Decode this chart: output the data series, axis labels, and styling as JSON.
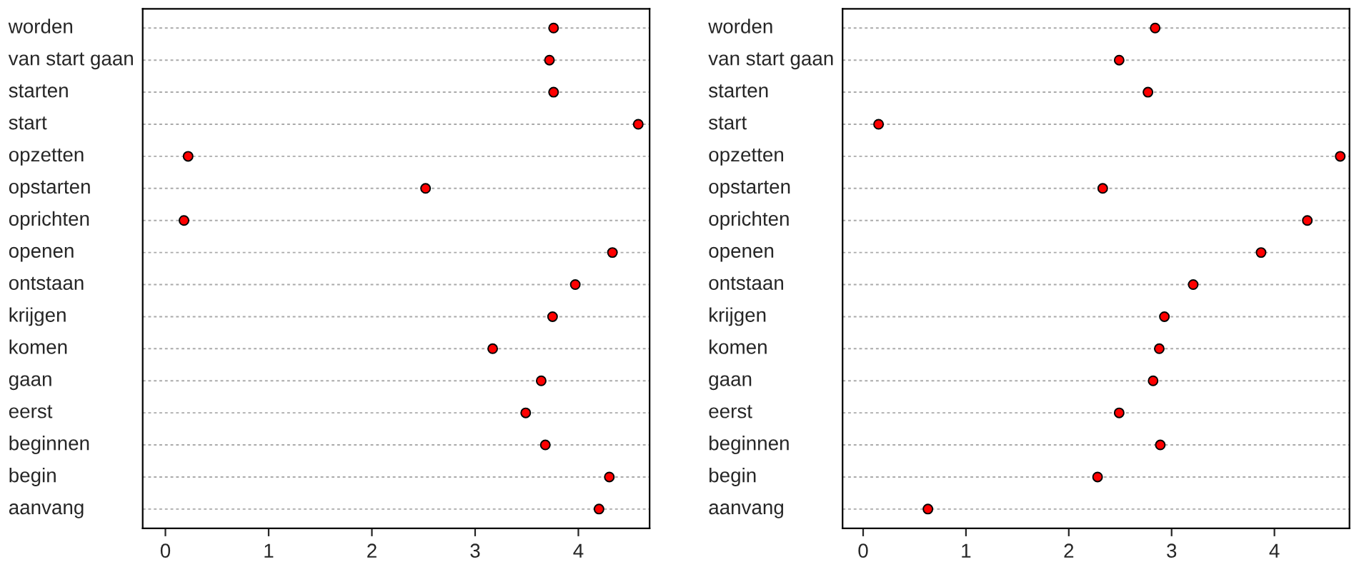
{
  "chart_data": [
    {
      "type": "scatter",
      "categories": [
        "worden",
        "van start gaan",
        "starten",
        "start",
        "opzetten",
        "opstarten",
        "oprichten",
        "openen",
        "ontstaan",
        "krijgen",
        "komen",
        "gaan",
        "eerst",
        "beginnen",
        "begin",
        "aanvang"
      ],
      "orientation": "horizontal",
      "series": [
        {
          "color": "#ff0000",
          "values": [
            3.76,
            3.72,
            3.76,
            4.58,
            0.22,
            2.52,
            0.18,
            4.33,
            3.97,
            3.75,
            3.17,
            3.64,
            3.49,
            3.68,
            4.3,
            4.2
          ]
        }
      ],
      "xlim": [
        -0.22,
        4.69
      ],
      "xticks": [
        0,
        1,
        2,
        3,
        4
      ],
      "grid": "y",
      "marker": "circle"
    },
    {
      "type": "scatter",
      "categories": [
        "worden",
        "van start gaan",
        "starten",
        "start",
        "opzetten",
        "opstarten",
        "oprichten",
        "openen",
        "ontstaan",
        "krijgen",
        "komen",
        "gaan",
        "eerst",
        "beginnen",
        "begin",
        "aanvang"
      ],
      "orientation": "horizontal",
      "series": [
        {
          "color": "#ff0000",
          "values": [
            2.84,
            2.49,
            2.77,
            0.15,
            4.64,
            2.33,
            4.32,
            3.87,
            3.21,
            2.93,
            2.88,
            2.82,
            2.49,
            2.89,
            2.28,
            0.63
          ]
        }
      ],
      "xlim": [
        -0.2,
        4.73
      ],
      "xticks": [
        0,
        1,
        2,
        3,
        4
      ],
      "grid": "y",
      "marker": "circle"
    }
  ]
}
